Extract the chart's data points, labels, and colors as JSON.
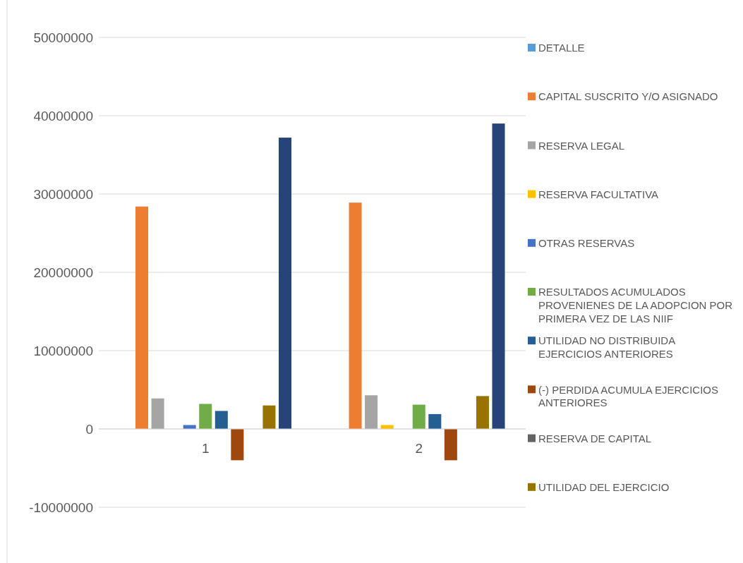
{
  "chart_data": {
    "type": "bar",
    "categories": [
      "1",
      "2"
    ],
    "series": [
      {
        "name": "DETALLE",
        "color": "#5b9bd5",
        "values": [
          0,
          0
        ]
      },
      {
        "name": "CAPITAL SUSCRITO Y/O ASIGNADO",
        "color": "#ed7d31",
        "values": [
          28400000,
          28900000
        ]
      },
      {
        "name": "RESERVA LEGAL",
        "color": "#a5a5a5",
        "values": [
          3900000,
          4300000
        ]
      },
      {
        "name": "RESERVA FACULTATIVA",
        "color": "#ffc000",
        "values": [
          0,
          500000
        ]
      },
      {
        "name": "OTRAS RESERVAS",
        "color": "#4472c4",
        "values": [
          500000,
          0
        ]
      },
      {
        "name": "RESULTADOS ACUMULADOS PROVENIENES DE LA ADOPCION POR PRIMERA VEZ DE LAS NIIF",
        "color": "#70ad47",
        "values": [
          3200000,
          3100000
        ]
      },
      {
        "name": "UTILIDAD NO DISTRIBUIDA EJERCICIOS ANTERIORES",
        "color": "#255e91",
        "values": [
          2300000,
          1900000
        ]
      },
      {
        "name": "(-) PERDIDA ACUMULA EJERCICIOS ANTERIORES",
        "color": "#9e480e",
        "values": [
          -4000000,
          -4000000
        ]
      },
      {
        "name": "RESERVA DE CAPITAL",
        "color": "#636363",
        "values": [
          0,
          0
        ]
      },
      {
        "name": "UTILIDAD DEL EJERCICIO",
        "color": "#997300",
        "values": [
          3000000,
          4200000
        ]
      },
      {
        "color": "#264478",
        "values": [
          37200000,
          39000000
        ]
      }
    ],
    "ylim": [
      -10000000,
      50000000
    ],
    "yticks": [
      -10000000,
      0,
      10000000,
      20000000,
      30000000,
      40000000,
      50000000
    ],
    "grid": "y",
    "legend": "right"
  }
}
